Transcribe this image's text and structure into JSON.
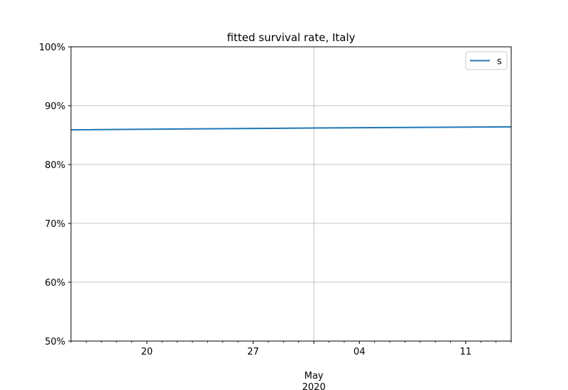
{
  "chart_data": {
    "type": "line",
    "title": "fitted survival rate, Italy",
    "xlabel": "",
    "ylabel": "",
    "x_axis": {
      "type": "date",
      "range": [
        "2020-04-15",
        "2020-05-14"
      ],
      "major_ticks": [
        {
          "date": "2020-04-20",
          "label": "20"
        },
        {
          "date": "2020-04-27",
          "label": "27"
        },
        {
          "date": "2020-05-04",
          "label": "04"
        },
        {
          "date": "2020-05-11",
          "label": "11"
        }
      ],
      "month_marker": {
        "date": "2020-05-01",
        "label": "May",
        "year_label": "2020"
      },
      "minor_ticks": "daily"
    },
    "y_axis": {
      "format": "percent",
      "ylim": [
        0.5,
        1.0
      ],
      "ticks": [
        {
          "value": 0.5,
          "label": "50%"
        },
        {
          "value": 0.6,
          "label": "60%"
        },
        {
          "value": 0.7,
          "label": "70%"
        },
        {
          "value": 0.8,
          "label": "80%"
        },
        {
          "value": 0.9,
          "label": "90%"
        },
        {
          "value": 1.0,
          "label": "100%"
        }
      ]
    },
    "grid": true,
    "legend_position": "top-right",
    "series": [
      {
        "name": "s",
        "color": "#1f77b4",
        "x": [
          "2020-04-15",
          "2020-05-01",
          "2020-05-14"
        ],
        "y": [
          0.859,
          0.862,
          0.864
        ]
      }
    ]
  }
}
